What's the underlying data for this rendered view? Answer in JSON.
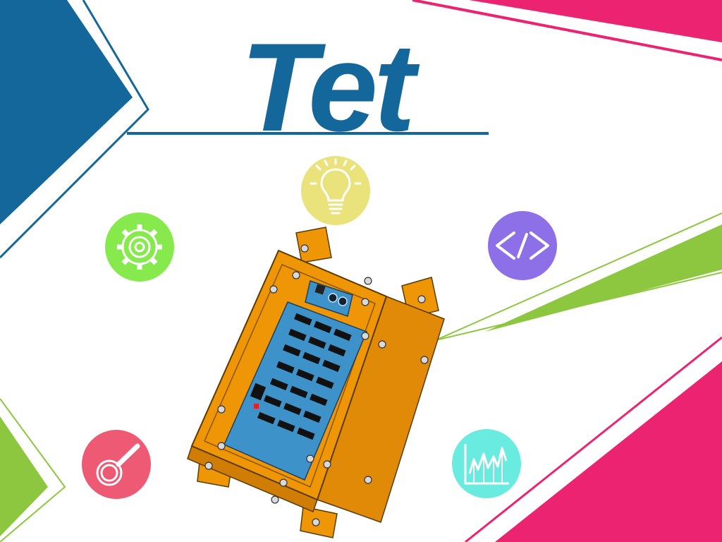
{
  "slide": {
    "title": "Tet"
  },
  "colors": {
    "brand_blue": "#14679a",
    "accent_pink": "#ec2370",
    "accent_green": "#8dc63f",
    "device_orange": "#ef9607",
    "panel_blue": "#3d92c9",
    "gear_badge": "#86ea4c",
    "bulb_badge": "#eae27a",
    "code_badge": "#8d6fe8",
    "search_badge": "#ee5a73",
    "chart_badge": "#69ecdf"
  },
  "icons": [
    "gear-icon",
    "lightbulb-icon",
    "code-icon",
    "magnifier-icon",
    "line-chart-icon"
  ]
}
